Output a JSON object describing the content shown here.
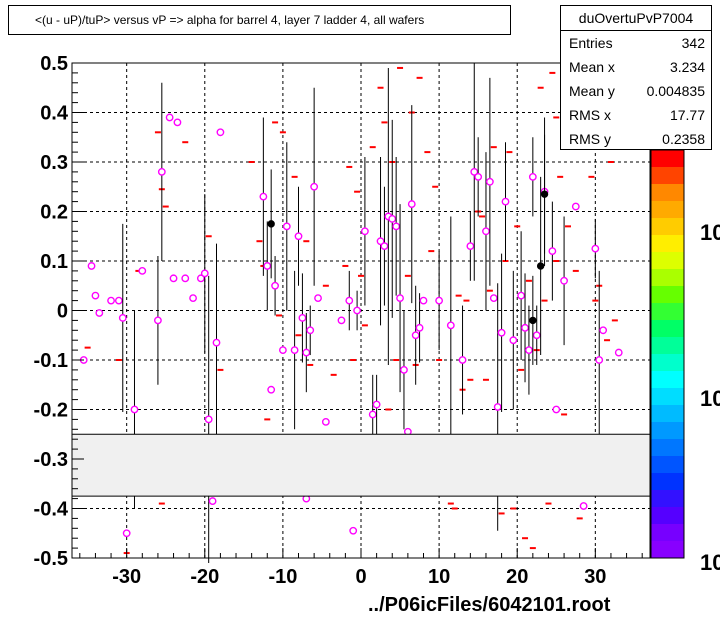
{
  "title": "<(u - uP)/tuP> versus   vP => alpha for barrel 4, layer 7 ladder 4, all wafers",
  "stats": {
    "name": "duOvertuPvP7004",
    "rows": [
      {
        "label": "Entries",
        "value": "342"
      },
      {
        "label": "Mean x",
        "value": "3.234"
      },
      {
        "label": "Mean y",
        "value": "0.004835"
      },
      {
        "label": "RMS x",
        "value": "17.77"
      },
      {
        "label": "RMS y",
        "value": "0.2358"
      }
    ]
  },
  "file_label": "../P06icFiles/6042101.root",
  "colors": {
    "marker": "#ff00ff",
    "dash": "#ff0000",
    "band": "#f0f0f0",
    "black_point": "#000000"
  },
  "chart_data": {
    "type": "scatter",
    "xlim": [
      -37,
      37
    ],
    "ylim": [
      -0.5,
      0.5
    ],
    "xticks": [
      -30,
      -20,
      -10,
      0,
      10,
      20,
      30
    ],
    "yticks": [
      -0.5,
      -0.4,
      -0.3,
      -0.2,
      -0.1,
      0,
      0.1,
      0.2,
      0.3,
      0.4,
      0.5
    ],
    "grid": true,
    "gray_band": [
      -0.375,
      -0.25
    ],
    "colorbar_labels": [
      "10",
      "10",
      "10"
    ],
    "points": [
      {
        "x": -35.5,
        "y": -0.1,
        "err": 0
      },
      {
        "x": -34.5,
        "y": 0.09,
        "err": 0
      },
      {
        "x": -34,
        "y": 0.03,
        "err": 0
      },
      {
        "x": -33.5,
        "y": -0.005,
        "err": 0
      },
      {
        "x": -32,
        "y": 0.02,
        "err": 0
      },
      {
        "x": -31,
        "y": 0.02,
        "err": 0
      },
      {
        "x": -30.5,
        "y": -0.015,
        "err": 0.19
      },
      {
        "x": -29,
        "y": -0.2,
        "err": 0.2
      },
      {
        "x": -28,
        "y": 0.08,
        "err": 0
      },
      {
        "x": -26,
        "y": -0.02,
        "err": 0.13
      },
      {
        "x": -25.5,
        "y": 0.28,
        "err": 0.18
      },
      {
        "x": -24.5,
        "y": 0.39,
        "err": 0
      },
      {
        "x": -24,
        "y": 0.065,
        "err": 0
      },
      {
        "x": -23.5,
        "y": 0.38,
        "err": 0
      },
      {
        "x": -22.5,
        "y": 0.065,
        "err": 0
      },
      {
        "x": -21.5,
        "y": 0.025,
        "err": 0
      },
      {
        "x": -20.5,
        "y": 0.065,
        "err": 0
      },
      {
        "x": -20,
        "y": 0.075,
        "err": 0.16
      },
      {
        "x": -19.5,
        "y": -0.22,
        "err": 0.29
      },
      {
        "x": -18.5,
        "y": -0.065,
        "err": 0.2
      },
      {
        "x": -18,
        "y": 0.36,
        "err": 0
      },
      {
        "x": -12.5,
        "y": 0.23,
        "err": 0.16
      },
      {
        "x": -12,
        "y": 0.09,
        "err": 0.09
      },
      {
        "x": -11.5,
        "y": -0.16,
        "err": 0
      },
      {
        "x": -11,
        "y": 0.05,
        "err": 0.06
      },
      {
        "x": -10,
        "y": -0.08,
        "err": 0
      },
      {
        "x": -9.5,
        "y": 0.17,
        "err": 0.17
      },
      {
        "x": -8.5,
        "y": -0.08,
        "err": 0.16
      },
      {
        "x": -8,
        "y": 0.15,
        "err": 0.1
      },
      {
        "x": -7.5,
        "y": -0.015,
        "err": 0.09
      },
      {
        "x": -7,
        "y": -0.085,
        "err": 0.08
      },
      {
        "x": -6.5,
        "y": -0.04,
        "err": 0.05
      },
      {
        "x": -6,
        "y": 0.25,
        "err": 0.2
      },
      {
        "x": -5.5,
        "y": 0.025,
        "err": 0
      },
      {
        "x": -4.5,
        "y": -0.225,
        "err": 0
      },
      {
        "x": -2.5,
        "y": -0.02,
        "err": 0
      },
      {
        "x": -1.5,
        "y": 0.02,
        "err": 0.06
      },
      {
        "x": -0.5,
        "y": 0.0,
        "err": 0.04
      },
      {
        "x": 0.5,
        "y": 0.16,
        "err": 0.15
      },
      {
        "x": 1.5,
        "y": -0.21,
        "err": 0.08
      },
      {
        "x": 2,
        "y": -0.19,
        "err": 0.06
      },
      {
        "x": 2.5,
        "y": 0.14,
        "err": 0.17
      },
      {
        "x": 3,
        "y": 0.13,
        "err": 0.12
      },
      {
        "x": 3.5,
        "y": 0.19,
        "err": 0.3
      },
      {
        "x": 4,
        "y": 0.185,
        "err": 0.2
      },
      {
        "x": 4.5,
        "y": 0.17,
        "err": 0.14
      },
      {
        "x": 5,
        "y": 0.025,
        "err": 0.19
      },
      {
        "x": 5.5,
        "y": -0.12,
        "err": 0.12
      },
      {
        "x": 6,
        "y": -0.245,
        "err": 0
      },
      {
        "x": 6.5,
        "y": 0.215,
        "err": 0.2
      },
      {
        "x": 7,
        "y": -0.05,
        "err": 0.1
      },
      {
        "x": 7.5,
        "y": -0.035,
        "err": 0.07
      },
      {
        "x": 8,
        "y": 0.02,
        "err": 0
      },
      {
        "x": 10,
        "y": 0.02,
        "err": 0.1
      },
      {
        "x": 11.5,
        "y": -0.03,
        "err": 0.22
      },
      {
        "x": 13,
        "y": -0.1,
        "err": 0.11
      },
      {
        "x": 14,
        "y": 0.13,
        "err": 0.07
      },
      {
        "x": 14.5,
        "y": 0.28,
        "err": 0.22
      },
      {
        "x": 15,
        "y": 0.27,
        "err": 0.08
      },
      {
        "x": 16,
        "y": 0.16,
        "err": 0.16
      },
      {
        "x": 16.5,
        "y": 0.26,
        "err": 0.21
      },
      {
        "x": 17,
        "y": 0.025,
        "err": 0
      },
      {
        "x": 17.5,
        "y": -0.195,
        "err": 0.25
      },
      {
        "x": 18,
        "y": -0.045,
        "err": 0.16
      },
      {
        "x": 18.5,
        "y": 0.22,
        "err": 0.12
      },
      {
        "x": 19.5,
        "y": -0.06,
        "err": 0.14
      },
      {
        "x": 20.5,
        "y": 0.03,
        "err": 0.13
      },
      {
        "x": 21,
        "y": -0.035,
        "err": 0.11
      },
      {
        "x": 21.5,
        "y": -0.08,
        "err": 0.09
      },
      {
        "x": 22,
        "y": 0.27,
        "err": 0.08
      },
      {
        "x": 22.5,
        "y": -0.05,
        "err": 0.06
      },
      {
        "x": 23.5,
        "y": 0.24,
        "err": 0.15
      },
      {
        "x": 24.5,
        "y": 0.12,
        "err": 0.1
      },
      {
        "x": 25,
        "y": -0.2,
        "err": 0
      },
      {
        "x": 26,
        "y": 0.06,
        "err": 0.13
      },
      {
        "x": 27.5,
        "y": 0.21,
        "err": 0
      },
      {
        "x": 28.5,
        "y": -0.395,
        "err": 0
      },
      {
        "x": 30,
        "y": 0.125,
        "err": 0.06
      },
      {
        "x": 30.5,
        "y": -0.1,
        "err": 0.18
      },
      {
        "x": 31,
        "y": -0.04,
        "err": 0
      },
      {
        "x": 33,
        "y": -0.085,
        "err": 0
      },
      {
        "x": -30,
        "y": -0.45,
        "err": 0
      },
      {
        "x": -1,
        "y": -0.445,
        "err": 0
      },
      {
        "x": -7,
        "y": -0.38,
        "err": 0
      },
      {
        "x": -19,
        "y": -0.385,
        "err": 0
      }
    ],
    "black_points": [
      {
        "x": -11.5,
        "y": 0.175,
        "err": 0.11
      },
      {
        "x": 22,
        "y": -0.02,
        "err": 0.09
      },
      {
        "x": 23,
        "y": 0.09,
        "err": 0.18
      },
      {
        "x": 23.5,
        "y": 0.235,
        "err": 0.12
      }
    ],
    "dashes": [
      {
        "x": -35,
        "y": -0.075
      },
      {
        "x": -31,
        "y": -0.1
      },
      {
        "x": -30,
        "y": -0.49
      },
      {
        "x": -28.5,
        "y": 0.08
      },
      {
        "x": -26,
        "y": 0.36
      },
      {
        "x": -25.5,
        "y": 0.245
      },
      {
        "x": -25,
        "y": 0.21
      },
      {
        "x": -25.5,
        "y": -0.39
      },
      {
        "x": -22.5,
        "y": 0.34
      },
      {
        "x": -21,
        "y": -0.36
      },
      {
        "x": -19.5,
        "y": 0.15
      },
      {
        "x": -18,
        "y": -0.12
      },
      {
        "x": -14,
        "y": 0.3
      },
      {
        "x": -13,
        "y": 0.14
      },
      {
        "x": -12.5,
        "y": 0.09
      },
      {
        "x": -12,
        "y": -0.22
      },
      {
        "x": -11,
        "y": 0.38
      },
      {
        "x": -10.5,
        "y": -0.01
      },
      {
        "x": -10,
        "y": 0.36
      },
      {
        "x": -8.5,
        "y": 0.27
      },
      {
        "x": -8,
        "y": -0.05
      },
      {
        "x": -7,
        "y": 0.14
      },
      {
        "x": -6.5,
        "y": -0.11
      },
      {
        "x": -6,
        "y": -0.36
      },
      {
        "x": -4.5,
        "y": 0.05
      },
      {
        "x": -3.5,
        "y": -0.13
      },
      {
        "x": -2,
        "y": 0.09
      },
      {
        "x": -1.5,
        "y": 0.29
      },
      {
        "x": -1,
        "y": -0.1
      },
      {
        "x": -0.5,
        "y": 0.24
      },
      {
        "x": 0,
        "y": 0.07
      },
      {
        "x": 0.5,
        "y": -0.03
      },
      {
        "x": 1,
        "y": -0.3
      },
      {
        "x": 1.5,
        "y": 0.33
      },
      {
        "x": 2.5,
        "y": 0.45
      },
      {
        "x": 3,
        "y": 0.38
      },
      {
        "x": 3.5,
        "y": -0.2
      },
      {
        "x": 4,
        "y": 0.3
      },
      {
        "x": 4.5,
        "y": -0.1
      },
      {
        "x": 5,
        "y": 0.49
      },
      {
        "x": 5.5,
        "y": -0.28
      },
      {
        "x": 6,
        "y": 0.07
      },
      {
        "x": 6.5,
        "y": 0.4
      },
      {
        "x": 7,
        "y": -0.11
      },
      {
        "x": 7.5,
        "y": 0.47
      },
      {
        "x": 8.5,
        "y": 0.32
      },
      {
        "x": 9,
        "y": 0.12
      },
      {
        "x": 9.5,
        "y": 0.25
      },
      {
        "x": 10,
        "y": -0.1
      },
      {
        "x": 11,
        "y": -0.37
      },
      {
        "x": 11.5,
        "y": -0.39
      },
      {
        "x": 12,
        "y": -0.4
      },
      {
        "x": 12.5,
        "y": 0.03
      },
      {
        "x": 13,
        "y": -0.16
      },
      {
        "x": 13.5,
        "y": 0.02
      },
      {
        "x": 14,
        "y": -0.14
      },
      {
        "x": 15,
        "y": 0.2
      },
      {
        "x": 15.5,
        "y": 0.19
      },
      {
        "x": 16,
        "y": -0.14
      },
      {
        "x": 16.5,
        "y": 0.04
      },
      {
        "x": 17,
        "y": 0.33
      },
      {
        "x": 17.5,
        "y": -0.36
      },
      {
        "x": 18,
        "y": -0.41
      },
      {
        "x": 18.5,
        "y": 0.1
      },
      {
        "x": 19,
        "y": 0.32
      },
      {
        "x": 19.5,
        "y": -0.4
      },
      {
        "x": 20,
        "y": 0.17
      },
      {
        "x": 20.5,
        "y": -0.12
      },
      {
        "x": 21,
        "y": -0.46
      },
      {
        "x": 21.5,
        "y": 0.06
      },
      {
        "x": 22,
        "y": -0.48
      },
      {
        "x": 22.5,
        "y": -0.08
      },
      {
        "x": 23,
        "y": 0.45
      },
      {
        "x": 23.5,
        "y": 0.02
      },
      {
        "x": 24,
        "y": -0.39
      },
      {
        "x": 24.5,
        "y": 0.48
      },
      {
        "x": 25,
        "y": 0.1
      },
      {
        "x": 25.5,
        "y": 0.27
      },
      {
        "x": 26,
        "y": -0.21
      },
      {
        "x": 26.5,
        "y": 0.17
      },
      {
        "x": 27,
        "y": -0.33
      },
      {
        "x": 27.5,
        "y": 0.08
      },
      {
        "x": 28,
        "y": -0.42
      },
      {
        "x": 28.5,
        "y": -0.37
      },
      {
        "x": 29.5,
        "y": 0.27
      },
      {
        "x": 30,
        "y": 0.02
      },
      {
        "x": 30.5,
        "y": 0.05
      },
      {
        "x": 31.5,
        "y": -0.06
      },
      {
        "x": 32,
        "y": 0.3
      },
      {
        "x": 32.5,
        "y": -0.02
      },
      {
        "x": 26.5,
        "y": 0.46
      },
      {
        "x": 25,
        "y": 0.39
      }
    ]
  }
}
